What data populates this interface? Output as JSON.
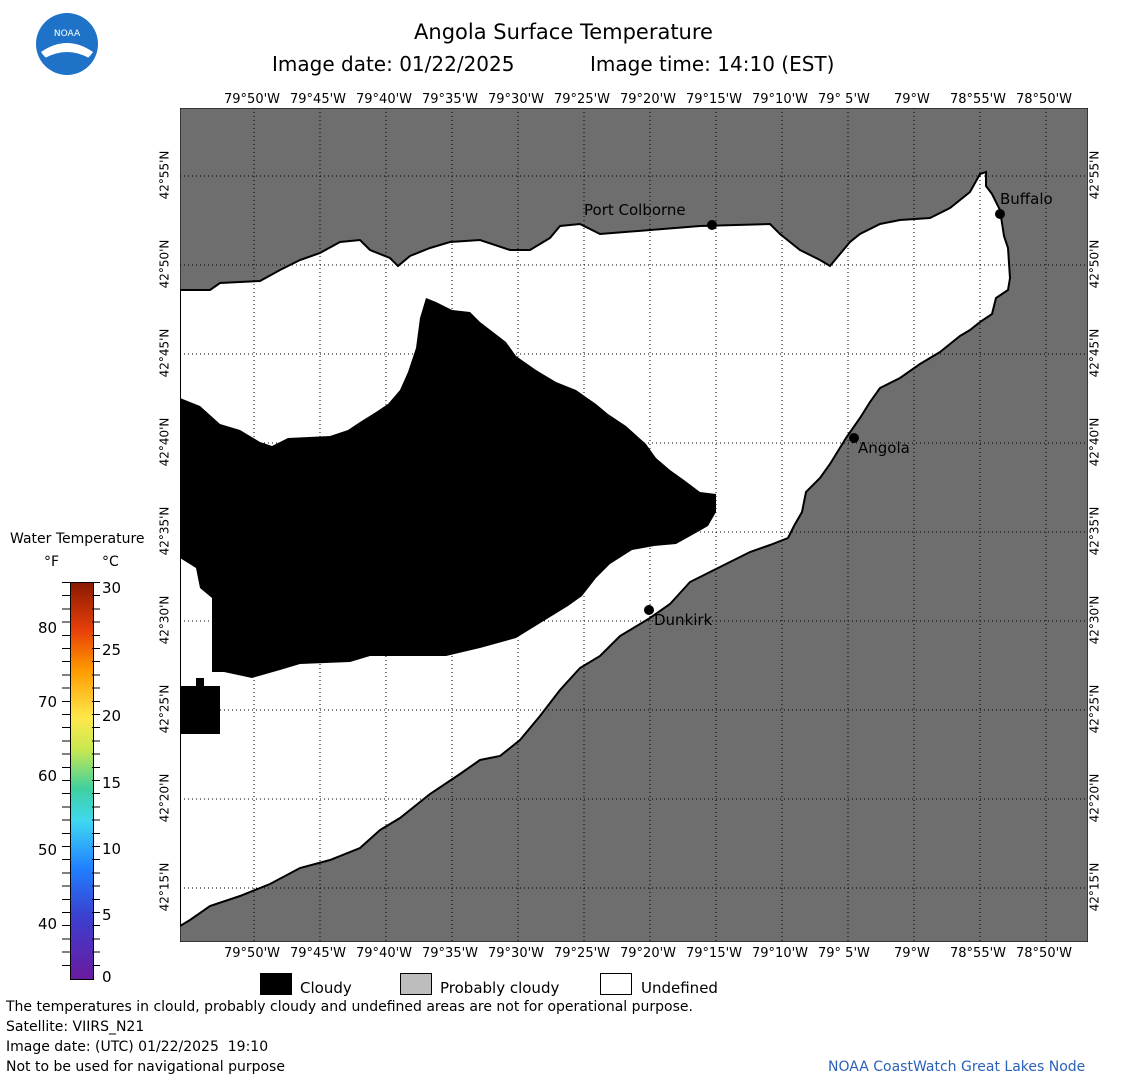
{
  "header": {
    "logo_text": "NOAA",
    "title": "Angola Surface Temperature",
    "image_date": "Image date: 01/22/2025",
    "image_time": "Image time: 14:10 (EST)"
  },
  "map": {
    "lon_labels": [
      "79°50'W",
      "79°45'W",
      "79°40'W",
      "79°35'W",
      "79°30'W",
      "79°25'W",
      "79°20'W",
      "79°15'W",
      "79°10'W",
      "79° 5'W",
      "79°W",
      "78°55'W",
      "78°50'W"
    ],
    "lat_labels": [
      "42°55'N",
      "42°50'N",
      "42°45'N",
      "42°40'N",
      "42°35'N",
      "42°30'N",
      "42°25'N",
      "42°20'N",
      "42°15'N"
    ],
    "places": [
      {
        "name": "Port Colborne"
      },
      {
        "name": "Buffalo"
      },
      {
        "name": "Angola"
      },
      {
        "name": "Dunkirk"
      }
    ],
    "colors": {
      "land": "#6e6e6e",
      "cloudy": "#000000",
      "probably_cloudy": "#bdbdbd",
      "undefined": "#ffffff"
    }
  },
  "colorbar": {
    "title": "Water Temperature",
    "unit_f": "°F",
    "unit_c": "°C",
    "f_ticks": [
      "80",
      "70",
      "60",
      "50",
      "40"
    ],
    "c_ticks": [
      "30",
      "25",
      "20",
      "15",
      "10",
      "5",
      "0"
    ]
  },
  "legend": {
    "cloudy": "Cloudy",
    "probably_cloudy": "Probably cloudy",
    "undefined": "Undefined"
  },
  "footer": {
    "disclaimer": "The temperatures in clould, probably cloudy and undefined areas are not for operational purpose.",
    "satellite": "Satellite: VIIRS_N21",
    "utc_date": "Image date: (UTC) 01/22/2025  19:10",
    "nav_warning": "Not to be used for navigational purpose",
    "credit": "NOAA CoastWatch Great Lakes Node"
  }
}
